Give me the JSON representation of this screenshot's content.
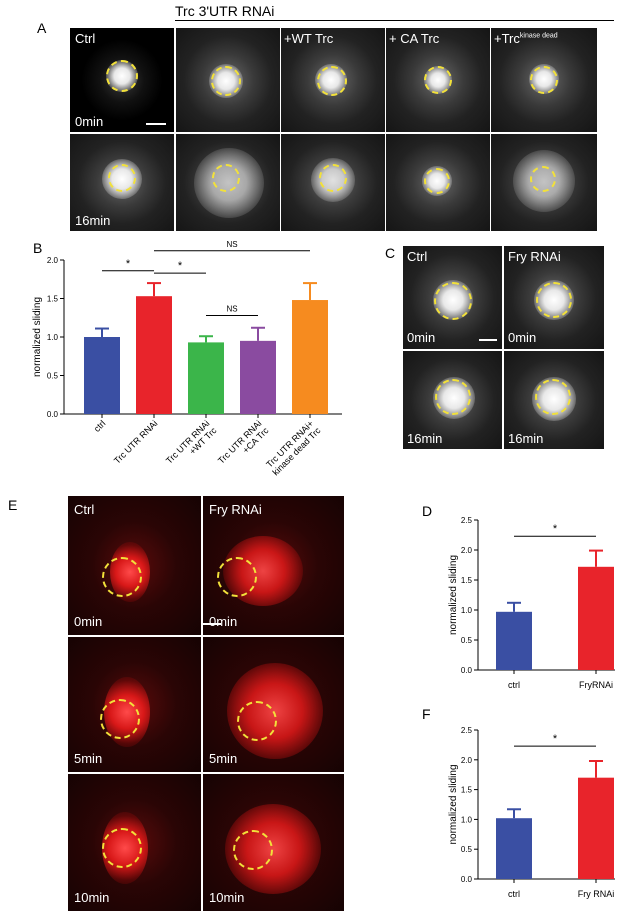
{
  "panel_labels": {
    "A": "A",
    "B": "B",
    "C": "C",
    "D": "D",
    "E": "E",
    "F": "F"
  },
  "panelA": {
    "header": "Trc 3'UTR RNAi",
    "column_labels": [
      "Ctrl",
      "",
      "+WT Trc",
      "+ CA Trc",
      "+Trc"
    ],
    "kinase_superscript": "kinase dead",
    "row_labels": [
      "0min",
      "16min"
    ]
  },
  "panelC": {
    "column_labels": [
      "Ctrl",
      "Fry RNAi"
    ],
    "row_labels": [
      "0min",
      "16min"
    ]
  },
  "panelE": {
    "column_labels": [
      "Ctrl",
      "Fry RNAi"
    ],
    "row_labels": [
      "0min",
      "5min",
      "10min"
    ]
  },
  "colors": {
    "blue": "#3a4fa3",
    "red": "#e8242b",
    "green": "#3bb54a",
    "purple": "#8a4ba0",
    "orange": "#f68b1f",
    "circle": "#f2e13a"
  },
  "chart_data": [
    {
      "id": "B",
      "type": "bar",
      "ylabel": "normalized sliding",
      "ylim": [
        0,
        2.0
      ],
      "yticks": [
        "0.0",
        "0.5",
        "1.0",
        "1.5",
        "2.0"
      ],
      "categories": [
        "ctrl",
        "Trc UTR RNAi",
        "Trc UTR RNAi +WT Trc",
        "Trc UTR RNAi +CA Trc",
        "Trc UTR RNAi+ kinase dead Trc"
      ],
      "values": [
        1.0,
        1.53,
        0.93,
        0.95,
        1.48
      ],
      "errors": [
        0.11,
        0.17,
        0.08,
        0.17,
        0.22
      ],
      "significance": [
        "*",
        "*",
        "NS",
        "NS"
      ]
    },
    {
      "id": "D",
      "type": "bar",
      "ylabel": "normalized sliding",
      "ylim": [
        0,
        2.5
      ],
      "yticks": [
        "0.0",
        "0.5",
        "1.0",
        "1.5",
        "2.0",
        "2.5"
      ],
      "categories": [
        "ctrl",
        "FryRNAi"
      ],
      "values": [
        0.97,
        1.72
      ],
      "errors": [
        0.15,
        0.27
      ],
      "significance": [
        "*"
      ]
    },
    {
      "id": "F",
      "type": "bar",
      "ylabel": "normalized sliding",
      "ylim": [
        0,
        2.5
      ],
      "yticks": [
        "0.0",
        "0.5",
        "1.0",
        "1.5",
        "2.0",
        "2.5"
      ],
      "categories": [
        "ctrl",
        "Fry RNAi"
      ],
      "values": [
        1.02,
        1.7
      ],
      "errors": [
        0.15,
        0.28
      ],
      "significance": [
        "*"
      ]
    }
  ]
}
